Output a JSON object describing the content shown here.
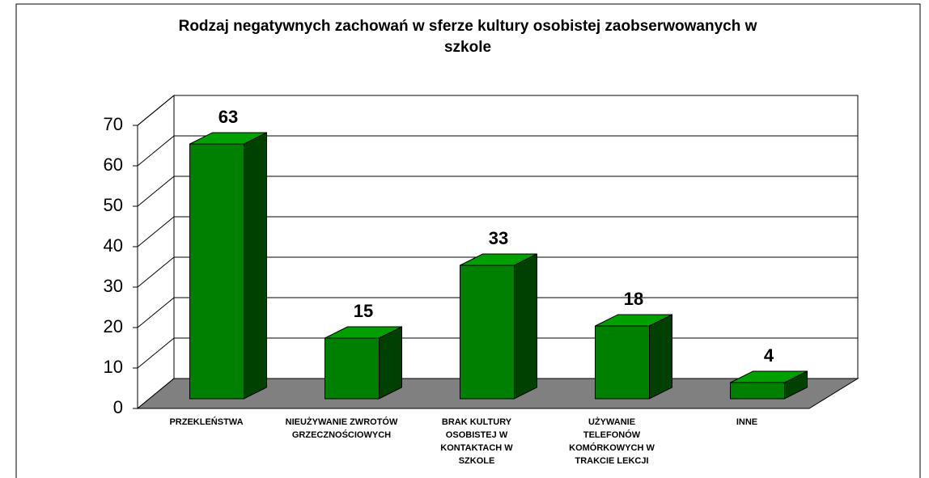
{
  "chart_data": {
    "type": "bar3d",
    "title": "Rodzaj negatywnych zachowań w sferze kultury osobistej zaobserwowanych w szkole",
    "categories": [
      "PRZEKLEŃSTWA",
      "NIEUŻYWANIE ZWROTÓW GRZECZNOŚCIOWYCH",
      "BRAK KULTURY OSOBISTEJ W KONTAKTACH W SZKOLE",
      "UŻYWANIE TELEFONÓW KOMÓRKOWYCH W TRAKCIE LEKCJI",
      "INNE"
    ],
    "values": [
      63,
      15,
      33,
      18,
      4
    ],
    "color": "#008000",
    "ylim": [
      0,
      70
    ],
    "yticks": [
      0,
      10,
      20,
      30,
      40,
      50,
      60,
      70
    ],
    "grid": true
  }
}
